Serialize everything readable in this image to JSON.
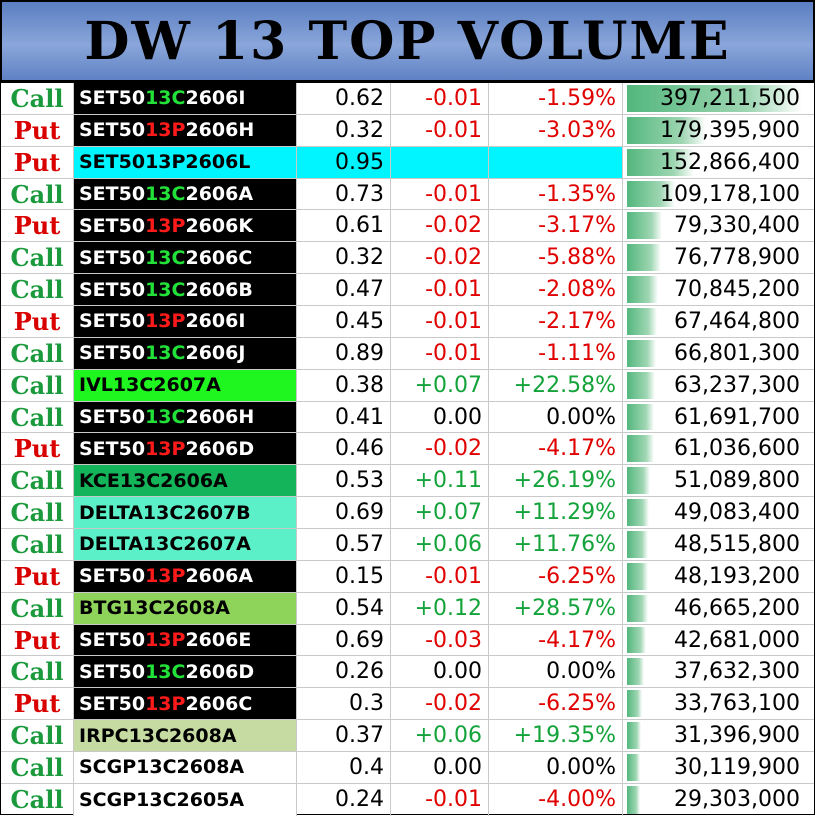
{
  "header": {
    "title": "DW 13 TOP VOLUME"
  },
  "colors": {
    "call": "#1a9a3c",
    "put": "#d90000",
    "positive": "#14a33a",
    "negative": "#e00000",
    "bar": "#53b77d"
  },
  "rows": [
    {
      "type": "Call",
      "name": [
        {
          "t": "SET50"
        },
        {
          "t": "13C",
          "c": "g"
        },
        {
          "t": "2606I"
        }
      ],
      "bg": "black",
      "price": "0.62",
      "chg": "-0.01",
      "pct": "-1.59%",
      "vol": "397,211,500",
      "volume": 397211500
    },
    {
      "type": "Put",
      "name": [
        {
          "t": "SET50"
        },
        {
          "t": "13P",
          "c": "r"
        },
        {
          "t": "2606H"
        }
      ],
      "bg": "black",
      "price": "0.32",
      "chg": "-0.01",
      "pct": "-3.03%",
      "vol": "179,395,900",
      "volume": 179395900
    },
    {
      "type": "Put",
      "name": [
        {
          "t": "SET5013P2606L"
        }
      ],
      "bg": "cyan",
      "price": "0.95",
      "chg": "",
      "pct": "",
      "vol": "152,866,400",
      "volume": 152866400
    },
    {
      "type": "Call",
      "name": [
        {
          "t": "SET50"
        },
        {
          "t": "13C",
          "c": "g"
        },
        {
          "t": "2606A"
        }
      ],
      "bg": "black",
      "price": "0.73",
      "chg": "-0.01",
      "pct": "-1.35%",
      "vol": "109,178,100",
      "volume": 109178100
    },
    {
      "type": "Put",
      "name": [
        {
          "t": "SET50"
        },
        {
          "t": "13P",
          "c": "r"
        },
        {
          "t": "2606K"
        }
      ],
      "bg": "black",
      "price": "0.61",
      "chg": "-0.02",
      "pct": "-3.17%",
      "vol": "79,330,400",
      "volume": 79330400
    },
    {
      "type": "Call",
      "name": [
        {
          "t": "SET50"
        },
        {
          "t": "13C",
          "c": "g"
        },
        {
          "t": "2606C"
        }
      ],
      "bg": "black",
      "price": "0.32",
      "chg": "-0.02",
      "pct": "-5.88%",
      "vol": "76,778,900",
      "volume": 76778900
    },
    {
      "type": "Call",
      "name": [
        {
          "t": "SET50"
        },
        {
          "t": "13C",
          "c": "g"
        },
        {
          "t": "2606B"
        }
      ],
      "bg": "black",
      "price": "0.47",
      "chg": "-0.01",
      "pct": "-2.08%",
      "vol": "70,845,200",
      "volume": 70845200
    },
    {
      "type": "Put",
      "name": [
        {
          "t": "SET50"
        },
        {
          "t": "13P",
          "c": "r"
        },
        {
          "t": "2606I"
        }
      ],
      "bg": "black",
      "price": "0.45",
      "chg": "-0.01",
      "pct": "-2.17%",
      "vol": "67,464,800",
      "volume": 67464800
    },
    {
      "type": "Call",
      "name": [
        {
          "t": "SET50"
        },
        {
          "t": "13C",
          "c": "g"
        },
        {
          "t": "2606J"
        }
      ],
      "bg": "black",
      "price": "0.89",
      "chg": "-0.01",
      "pct": "-1.11%",
      "vol": "66,801,300",
      "volume": 66801300
    },
    {
      "type": "Call",
      "name": [
        {
          "t": "IVL13C2607A"
        }
      ],
      "bg": "lime",
      "price": "0.38",
      "chg": "+0.07",
      "pct": "+22.58%",
      "vol": "63,237,300",
      "volume": 63237300
    },
    {
      "type": "Call",
      "name": [
        {
          "t": "SET50"
        },
        {
          "t": "13C",
          "c": "g"
        },
        {
          "t": "2606H"
        }
      ],
      "bg": "black",
      "price": "0.41",
      "chg": "0.00",
      "pct": "0.00%",
      "vol": "61,691,700",
      "volume": 61691700
    },
    {
      "type": "Put",
      "name": [
        {
          "t": "SET50"
        },
        {
          "t": "13P",
          "c": "r"
        },
        {
          "t": "2606D"
        }
      ],
      "bg": "black",
      "price": "0.46",
      "chg": "-0.02",
      "pct": "-4.17%",
      "vol": "61,036,600",
      "volume": 61036600
    },
    {
      "type": "Call",
      "name": [
        {
          "t": "KCE13C2606A"
        }
      ],
      "bg": "teal",
      "price": "0.53",
      "chg": "+0.11",
      "pct": "+26.19%",
      "vol": "51,089,800",
      "volume": 51089800
    },
    {
      "type": "Call",
      "name": [
        {
          "t": "DELTA13C2607B"
        }
      ],
      "bg": "aqua",
      "price": "0.69",
      "chg": "+0.07",
      "pct": "+11.29%",
      "vol": "49,083,400",
      "volume": 49083400
    },
    {
      "type": "Call",
      "name": [
        {
          "t": "DELTA13C2607A"
        }
      ],
      "bg": "aqua",
      "price": "0.57",
      "chg": "+0.06",
      "pct": "+11.76%",
      "vol": "48,515,800",
      "volume": 48515800
    },
    {
      "type": "Put",
      "name": [
        {
          "t": "SET50"
        },
        {
          "t": "13P",
          "c": "r"
        },
        {
          "t": "2606A"
        }
      ],
      "bg": "black",
      "price": "0.15",
      "chg": "-0.01",
      "pct": "-6.25%",
      "vol": "48,193,200",
      "volume": 48193200
    },
    {
      "type": "Call",
      "name": [
        {
          "t": "BTG13C2608A"
        }
      ],
      "bg": "olive",
      "price": "0.54",
      "chg": "+0.12",
      "pct": "+28.57%",
      "vol": "46,665,200",
      "volume": 46665200
    },
    {
      "type": "Put",
      "name": [
        {
          "t": "SET50"
        },
        {
          "t": "13P",
          "c": "r"
        },
        {
          "t": "2606E"
        }
      ],
      "bg": "black",
      "price": "0.69",
      "chg": "-0.03",
      "pct": "-4.17%",
      "vol": "42,681,000",
      "volume": 42681000
    },
    {
      "type": "Call",
      "name": [
        {
          "t": "SET50"
        },
        {
          "t": "13C",
          "c": "g"
        },
        {
          "t": "2606D"
        }
      ],
      "bg": "black",
      "price": "0.26",
      "chg": "0.00",
      "pct": "0.00%",
      "vol": "37,632,300",
      "volume": 37632300
    },
    {
      "type": "Put",
      "name": [
        {
          "t": "SET50"
        },
        {
          "t": "13P",
          "c": "r"
        },
        {
          "t": "2606C"
        }
      ],
      "bg": "black",
      "price": "0.3",
      "chg": "-0.02",
      "pct": "-6.25%",
      "vol": "33,763,100",
      "volume": 33763100
    },
    {
      "type": "Call",
      "name": [
        {
          "t": "IRPC13C2608A"
        }
      ],
      "bg": "sage",
      "price": "0.37",
      "chg": "+0.06",
      "pct": "+19.35%",
      "vol": "31,396,900",
      "volume": 31396900
    },
    {
      "type": "Call",
      "name": [
        {
          "t": "SCGP13C2608A"
        }
      ],
      "bg": "white",
      "price": "0.4",
      "chg": "0.00",
      "pct": "0.00%",
      "vol": "30,119,900",
      "volume": 30119900
    },
    {
      "type": "Call",
      "name": [
        {
          "t": "SCGP13C2605A"
        }
      ],
      "bg": "white",
      "price": "0.24",
      "chg": "-0.01",
      "pct": "-4.00%",
      "vol": "29,303,000",
      "volume": 29303000
    }
  ]
}
